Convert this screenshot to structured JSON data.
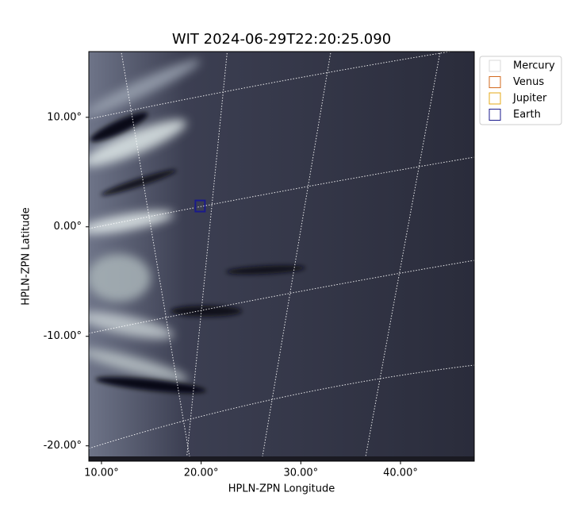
{
  "chart_data": {
    "type": "image",
    "title": "WIT 2024-06-29T22:20:25.090",
    "x_label": "HPLN-ZPN Longitude",
    "y_label": "HPLN-ZPN Latitude",
    "xlim": [
      8.73,
      47.4
    ],
    "ylim": [
      -21.4,
      16.0
    ],
    "xticks": [
      {
        "value": 10,
        "label": "10.00°"
      },
      {
        "value": 20,
        "label": "20.00°"
      },
      {
        "value": 30,
        "label": "30.00°"
      },
      {
        "value": 40,
        "label": "40.00°"
      }
    ],
    "yticks": [
      {
        "value": 10,
        "label": "10.00°"
      },
      {
        "value": 0,
        "label": "0.00°"
      },
      {
        "value": -10,
        "label": "-10.00°"
      },
      {
        "value": -20,
        "label": "-20.00°"
      }
    ],
    "series": [
      {
        "name": "Mercury",
        "color": "#d9d9d9"
      },
      {
        "name": "Venus",
        "color": "#d2691e"
      },
      {
        "name": "Jupiter",
        "color": "#e6a817"
      },
      {
        "name": "Earth",
        "color": "#1a1a8c",
        "x": [
          19.9
        ],
        "y": [
          1.9
        ]
      }
    ]
  }
}
